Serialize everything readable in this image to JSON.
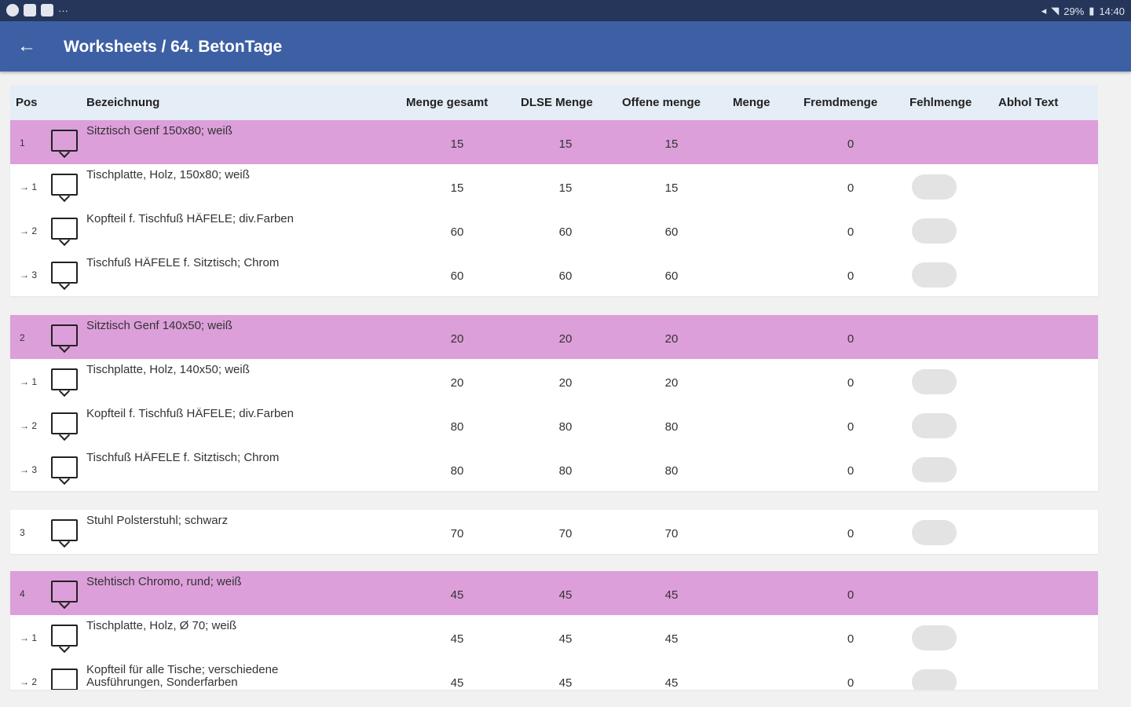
{
  "status_bar": {
    "icons_left": [
      "app-icon",
      "image-icon",
      "note-icon"
    ],
    "more": "···",
    "right": "29%",
    "time": "14:40"
  },
  "app_bar": {
    "back_icon": "←",
    "title": "Worksheets / 64. BetonTage"
  },
  "colors": {
    "app_bar": "#3d5fa4",
    "status_bar": "#26355a",
    "parent_row": "#dc9fda",
    "header": "#e5edf7"
  },
  "table": {
    "columns": [
      "Pos",
      "Bezeichnung",
      "Menge gesamt",
      "DLSE Menge",
      "Offene menge",
      "Menge",
      "Fremdmenge",
      "Fehlmenge",
      "Abhol Text"
    ],
    "groups": [
      {
        "rows": [
          {
            "pos": "1",
            "desc": "Sitztisch Genf 150x80; weiß",
            "menge_gesamt": "15",
            "dlse": "15",
            "offene": "15",
            "fremd": "0",
            "parent": true,
            "toggle": false
          },
          {
            "pos": "→ 1",
            "desc": "Tischplatte, Holz, 150x80; weiß",
            "menge_gesamt": "15",
            "dlse": "15",
            "offene": "15",
            "fremd": "0",
            "parent": false,
            "toggle": true
          },
          {
            "pos": "→ 2",
            "desc": "Kopfteil f. Tischfuß HÄFELE; div.Farben",
            "menge_gesamt": "60",
            "dlse": "60",
            "offene": "60",
            "fremd": "0",
            "parent": false,
            "toggle": true
          },
          {
            "pos": "→ 3",
            "desc": "Tischfuß HÄFELE f. Sitztisch; Chrom",
            "menge_gesamt": "60",
            "dlse": "60",
            "offene": "60",
            "fremd": "0",
            "parent": false,
            "toggle": true
          }
        ]
      },
      {
        "rows": [
          {
            "pos": "2",
            "desc": "Sitztisch Genf 140x50; weiß",
            "menge_gesamt": "20",
            "dlse": "20",
            "offene": "20",
            "fremd": "0",
            "parent": true,
            "toggle": false
          },
          {
            "pos": "→ 1",
            "desc": "Tischplatte, Holz, 140x50; weiß",
            "menge_gesamt": "20",
            "dlse": "20",
            "offene": "20",
            "fremd": "0",
            "parent": false,
            "toggle": true
          },
          {
            "pos": "→ 2",
            "desc": "Kopfteil f. Tischfuß HÄFELE; div.Farben",
            "menge_gesamt": "80",
            "dlse": "80",
            "offene": "80",
            "fremd": "0",
            "parent": false,
            "toggle": true
          },
          {
            "pos": "→ 3",
            "desc": "Tischfuß HÄFELE f. Sitztisch; Chrom",
            "menge_gesamt": "80",
            "dlse": "80",
            "offene": "80",
            "fremd": "0",
            "parent": false,
            "toggle": true
          }
        ]
      },
      {
        "rows": [
          {
            "pos": "3",
            "desc": "Stuhl Polsterstuhl; schwarz",
            "menge_gesamt": "70",
            "dlse": "70",
            "offene": "70",
            "fremd": "0",
            "parent": false,
            "toggle": true
          }
        ]
      },
      {
        "rows": [
          {
            "pos": "4",
            "desc": "Stehtisch Chromo, rund; weiß",
            "menge_gesamt": "45",
            "dlse": "45",
            "offene": "45",
            "fremd": "0",
            "parent": true,
            "toggle": false
          },
          {
            "pos": "→ 1",
            "desc": "Tischplatte, Holz, Ø 70; weiß",
            "menge_gesamt": "45",
            "dlse": "45",
            "offene": "45",
            "fremd": "0",
            "parent": false,
            "toggle": true
          },
          {
            "pos": "→ 2",
            "desc": "Kopfteil für alle Tische; verschiedene Ausführungen, Sonderfarben",
            "menge_gesamt": "45",
            "dlse": "45",
            "offene": "45",
            "fremd": "0",
            "parent": false,
            "toggle": true
          }
        ]
      }
    ]
  }
}
